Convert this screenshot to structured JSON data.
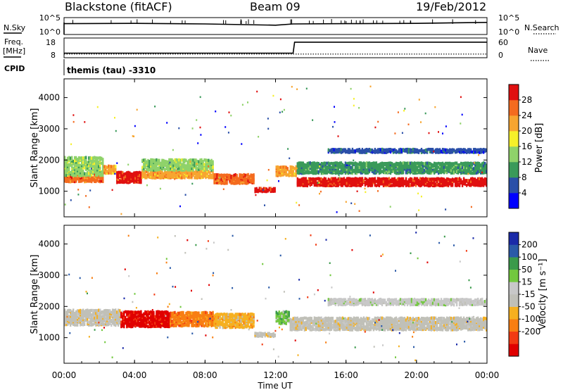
{
  "header": {
    "station": "Blackstone (fitACF)",
    "beam": "Beam 09",
    "date": "19/Feb/2012"
  },
  "panel_labels": {
    "nsky": "N.Sky",
    "nsearch": "N.Search",
    "freq": "Freq.",
    "freq_unit": "[MHz]",
    "nave": "Nave",
    "cpid": "CPID",
    "cpid_text": "themis (tau) -3310"
  },
  "scale_labels": {
    "top_hi": "10^5",
    "top_lo": "10^0",
    "freq_hi": "18",
    "freq_lo": "8",
    "nave_hi": "60",
    "nave_lo": "0"
  },
  "colors": {
    "power": [
      "#0000ff",
      "#2a4fa8",
      "#3a9a5a",
      "#8fd26a",
      "#f6f02a",
      "#f7a530",
      "#f46b1f",
      "#e01010"
    ],
    "velocity": [
      "#e00000",
      "#f23a12",
      "#f87e12",
      "#f6b020",
      "#c0c0b8",
      "#c8c8c8",
      "#72c83e",
      "#3a9a4a",
      "#2a5aa8",
      "#1a2aa8"
    ]
  },
  "chart_data": [
    {
      "type": "line",
      "name": "sky-noise-strip",
      "series": [
        {
          "name": "N.Sky",
          "x": [
            "00:00",
            "04:00",
            "08:00",
            "12:00",
            "13:00",
            "16:00",
            "20:00",
            "24:00"
          ],
          "values": [
            3.5,
            3.6,
            3.4,
            3.0,
            3.4,
            3.5,
            3.6,
            3.9
          ]
        },
        {
          "name": "N.Search"
        }
      ],
      "ylim": [
        0,
        5
      ]
    },
    {
      "type": "line",
      "name": "frequency-strip",
      "series": [
        {
          "name": "Freq.",
          "x": [
            "00:00",
            "13:00",
            "13:05",
            "24:00"
          ],
          "values": [
            10.5,
            10.5,
            16.5,
            16.5
          ]
        },
        {
          "name": "Nave",
          "x": [
            "00:00",
            "24:00"
          ],
          "values": [
            12,
            12
          ]
        }
      ],
      "ylim": [
        8,
        18
      ]
    },
    {
      "type": "heatmap",
      "name": "power",
      "ylabel": "Slant Range [km]",
      "xlabel": "Time UT",
      "colorbar_label": "Power [dB]",
      "colorbar_ticks": [
        "4",
        "8",
        "12",
        "16",
        "20",
        "24",
        "28"
      ],
      "y_ticks": [
        "1000",
        "2000",
        "3000",
        "4000"
      ],
      "ylim": [
        180,
        4600
      ],
      "x_ticks": [
        "00:00",
        "04:00",
        "08:00",
        "12:00",
        "16:00",
        "20:00",
        "00:00"
      ],
      "xlim_hours": [
        0,
        24
      ],
      "bands": [
        {
          "start": 0.0,
          "end": 2.2,
          "center": 1500,
          "width": 300,
          "level": 6
        },
        {
          "start": 0.0,
          "end": 2.2,
          "center": 1850,
          "width": 600,
          "level": 3
        },
        {
          "start": 2.2,
          "end": 3.0,
          "center": 1750,
          "width": 250,
          "level": 5
        },
        {
          "start": 3.0,
          "end": 4.4,
          "center": 1500,
          "width": 350,
          "level": 7
        },
        {
          "start": 4.4,
          "end": 8.5,
          "center": 1600,
          "width": 250,
          "level": 5
        },
        {
          "start": 4.4,
          "end": 8.5,
          "center": 1900,
          "width": 350,
          "level": 3
        },
        {
          "start": 8.5,
          "end": 10.8,
          "center": 1450,
          "width": 300,
          "level": 6
        },
        {
          "start": 10.8,
          "end": 12.0,
          "center": 1100,
          "width": 120,
          "level": 7
        },
        {
          "start": 12.0,
          "end": 13.2,
          "center": 1700,
          "width": 300,
          "level": 5
        },
        {
          "start": 13.2,
          "end": 24.0,
          "center": 1350,
          "width": 250,
          "level": 7
        },
        {
          "start": 13.2,
          "end": 24.0,
          "center": 1800,
          "width": 350,
          "level": 2
        },
        {
          "start": 15.0,
          "end": 24.0,
          "center": 2350,
          "width": 120,
          "level": 1
        }
      ]
    },
    {
      "type": "heatmap",
      "name": "velocity",
      "ylabel": "Slant Range [km]",
      "xlabel": "Time UT",
      "colorbar_label": "Velocity [m s⁻¹]",
      "colorbar_ticks": [
        "200",
        "100",
        "50",
        "15",
        "-15",
        "-50",
        "-100",
        "-200"
      ],
      "y_ticks": [
        "1000",
        "2000",
        "3000",
        "4000"
      ],
      "ylim": [
        180,
        4600
      ],
      "x_ticks": [
        "00:00",
        "04:00",
        "08:00",
        "12:00",
        "16:00",
        "20:00",
        "00:00"
      ],
      "xlim_hours": [
        0,
        24
      ],
      "bands": [
        {
          "start": 0.0,
          "end": 3.2,
          "center": 1700,
          "width": 500,
          "level": 4
        },
        {
          "start": 3.2,
          "end": 6.0,
          "center": 1650,
          "width": 500,
          "level": 0
        },
        {
          "start": 6.0,
          "end": 8.5,
          "center": 1650,
          "width": 450,
          "level": 2
        },
        {
          "start": 8.5,
          "end": 10.8,
          "center": 1600,
          "width": 450,
          "level": 3
        },
        {
          "start": 10.8,
          "end": 12.0,
          "center": 1150,
          "width": 120,
          "level": 4
        },
        {
          "start": 12.0,
          "end": 12.8,
          "center": 1700,
          "width": 400,
          "level": 6
        },
        {
          "start": 12.8,
          "end": 24.0,
          "center": 1500,
          "width": 400,
          "level": 4
        },
        {
          "start": 15.0,
          "end": 24.0,
          "center": 2200,
          "width": 200,
          "level": 5
        }
      ]
    }
  ],
  "axes": {
    "x_title": "Time UT"
  }
}
